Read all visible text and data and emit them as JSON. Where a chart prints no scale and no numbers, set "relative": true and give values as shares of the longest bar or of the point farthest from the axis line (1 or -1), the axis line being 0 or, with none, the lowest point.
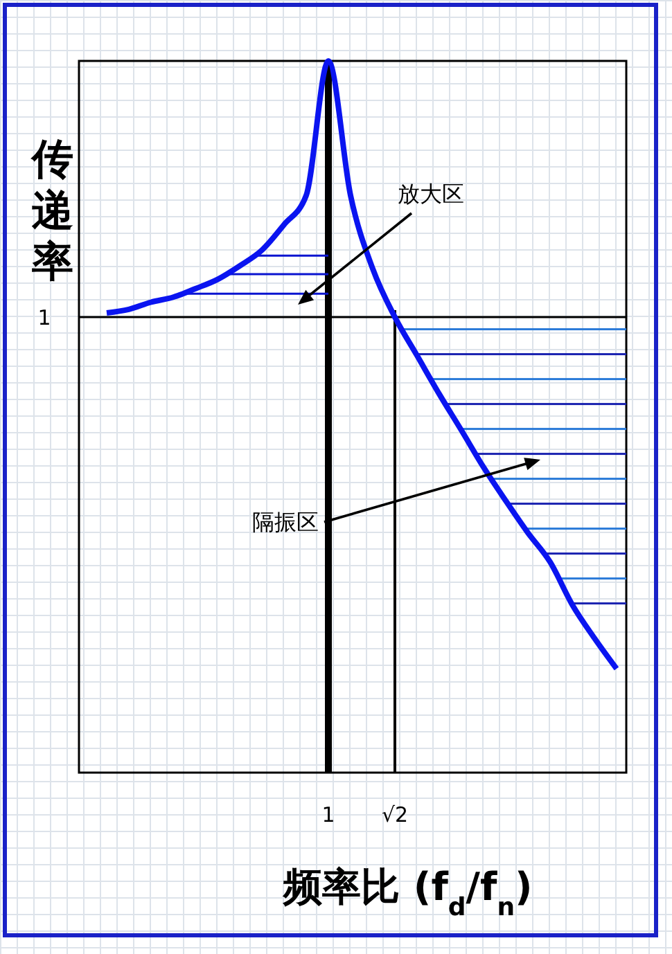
{
  "chart_data": {
    "type": "line",
    "relative": true,
    "xlabel": "频率比 (f$_{d}$/f$_{n}$)",
    "ylabel": "传递率",
    "categories": [
      null,
      null,
      null,
      null,
      null,
      null,
      null,
      null,
      null,
      null,
      "1",
      null,
      null,
      "√2",
      null,
      null,
      null,
      null,
      null,
      null,
      null,
      null,
      null,
      null
    ],
    "grid": false,
    "marker": "none",
    "line_style": "solid",
    "series": [
      {
        "color": "#0a14f0",
        "values": [
          0.646,
          0.651,
          0.661,
          0.668,
          0.68,
          0.693,
          0.712,
          0.734,
          0.77,
          0.811,
          1.0,
          0.811,
          0.708,
          0.64,
          0.586,
          0.532,
          0.481,
          0.429,
          0.382,
          0.337,
          0.296,
          0.236,
          0.189,
          0.146
        ]
      }
    ],
    "ref_lines": [
      {
        "axis": "y",
        "value": 0.64,
        "label": "1",
        "color": "#000000"
      },
      {
        "axis": "x",
        "value": "1",
        "color": "#000000"
      },
      {
        "axis": "x",
        "value": "√2",
        "color": "#000000"
      }
    ],
    "annotations": [
      "放大区",
      "隔振区"
    ]
  }
}
